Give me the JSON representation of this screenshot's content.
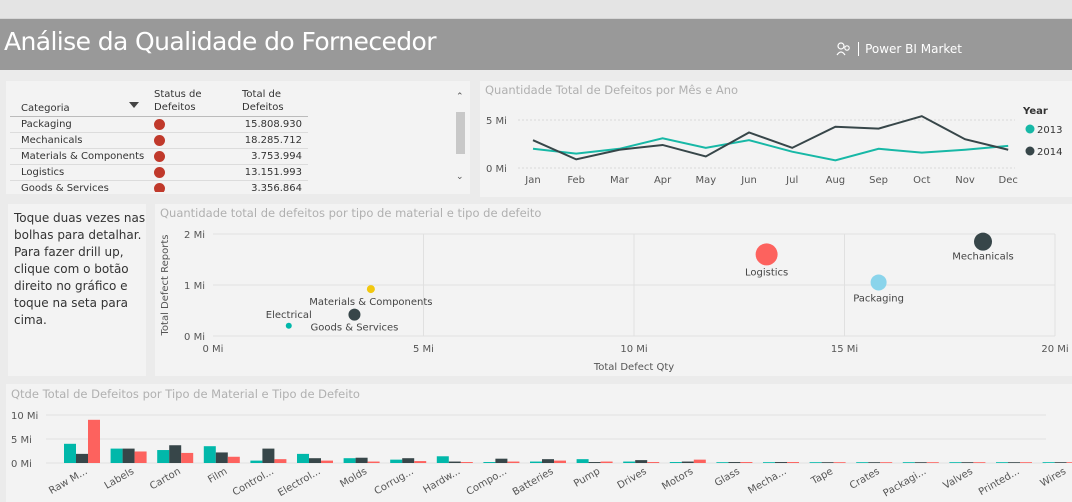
{
  "header": {
    "title": "Análise da Qualidade do Fornecedor",
    "brand": "Power BI Market",
    "brand_icon": "people-icon"
  },
  "table": {
    "headers": {
      "categoria": "Categoria",
      "status_1": "Status de",
      "status_2": "Defeitos",
      "total_1": "Total de",
      "total_2": "Defeitos"
    },
    "rows": [
      {
        "categoria": "Packaging",
        "total": "15.808.930"
      },
      {
        "categoria": "Mechanicals",
        "total": "18.285.712"
      },
      {
        "categoria": "Materials & Components",
        "total": "3.753.994"
      },
      {
        "categoria": "Logistics",
        "total": "13.151.993"
      },
      {
        "categoria": "Goods & Services",
        "total": "3.356.864"
      }
    ],
    "status_color": "#c0392b"
  },
  "line_chart": {
    "title": "Quantidade Total de Defeitos por Mês e Ano",
    "legend_title": "Year",
    "chart_data": {
      "type": "line",
      "x": [
        "Jan",
        "Feb",
        "Mar",
        "Apr",
        "May",
        "Jun",
        "Jul",
        "Aug",
        "Sep",
        "Oct",
        "Nov",
        "Dec"
      ],
      "series": [
        {
          "name": "2013",
          "color": "#17b8a6",
          "values": [
            2.0,
            1.5,
            2.0,
            3.1,
            2.1,
            2.9,
            1.7,
            0.8,
            2.0,
            1.6,
            1.9,
            2.3
          ]
        },
        {
          "name": "2014",
          "color": "#374649",
          "values": [
            2.9,
            0.9,
            1.9,
            2.4,
            1.2,
            3.7,
            2.1,
            4.3,
            4.1,
            5.4,
            3.0,
            1.9
          ]
        }
      ],
      "yticks": [
        "0 Mi",
        "5 Mi"
      ],
      "ylim": [
        0,
        6
      ]
    }
  },
  "note": {
    "text": "Toque duas vezes nas bolhas para detalhar. Para fazer drill up, clique com o botão direito no gráfico e toque na seta para cima."
  },
  "scatter_chart": {
    "title": "Quantidade total de defeitos por tipo de material e tipo de defeito",
    "chart_data": {
      "type": "scatter",
      "xlabel": "Total Defect Qty",
      "ylabel": "Total Defect Reports",
      "xticks": [
        "0 Mi",
        "5 Mi",
        "10 Mi",
        "15 Mi",
        "20 Mi"
      ],
      "yticks": [
        "0 Mi",
        "1 Mi",
        "2 Mi"
      ],
      "xlim": [
        0,
        20
      ],
      "ylim": [
        0,
        2
      ],
      "points": [
        {
          "label": "Logistics",
          "x": 13.15,
          "y": 1.6,
          "size": 11,
          "color": "#fd625e"
        },
        {
          "label": "Mechanicals",
          "x": 18.29,
          "y": 1.85,
          "size": 9,
          "color": "#374649"
        },
        {
          "label": "Packaging",
          "x": 15.81,
          "y": 1.05,
          "size": 8,
          "color": "#8ad4eb"
        },
        {
          "label": "Materials & Components",
          "x": 3.75,
          "y": 0.92,
          "size": 4,
          "color": "#f2c80f"
        },
        {
          "label": "Electrical",
          "x": 1.8,
          "y": 0.2,
          "size": 3,
          "color": "#01b8aa"
        },
        {
          "label": "Goods & Services",
          "x": 3.36,
          "y": 0.42,
          "size": 6,
          "color": "#374649"
        }
      ]
    }
  },
  "bar_chart": {
    "title": "Qtde Total de Defeitos por Tipo de Material e Tipo de Defeito",
    "chart_data": {
      "type": "bar",
      "categories": [
        "Raw M...",
        "Labels",
        "Carton",
        "Film",
        "Control...",
        "Electrol...",
        "Molds",
        "Corrug...",
        "Hardw...",
        "Compo...",
        "Batteries",
        "Pump",
        "Drives",
        "Motors",
        "Glass",
        "Mecha...",
        "Tape",
        "Crates",
        "Packagi...",
        "Valves",
        "Printed...",
        "Wires"
      ],
      "series": [
        {
          "color": "#01b8aa",
          "values": [
            4.0,
            3.0,
            2.7,
            3.5,
            0.5,
            1.9,
            1.0,
            0.7,
            1.4,
            0.2,
            0.3,
            0.8,
            0.3,
            0.2,
            0.1,
            0.1,
            0.1,
            0.1,
            0.1,
            0.05,
            0.1,
            0.05
          ]
        },
        {
          "color": "#374649",
          "values": [
            1.9,
            3.0,
            3.7,
            2.2,
            3.0,
            1.0,
            1.1,
            1.0,
            0.3,
            0.9,
            0.8,
            0.2,
            0.6,
            0.3,
            0.2,
            0.2,
            0.1,
            0.1,
            0.1,
            0.1,
            0.1,
            0.05
          ]
        },
        {
          "color": "#fd625e",
          "values": [
            9.0,
            2.4,
            2.1,
            1.3,
            0.8,
            0.5,
            0.3,
            0.4,
            0.2,
            0.3,
            0.5,
            0.3,
            0.2,
            0.7,
            0.2,
            0.2,
            0.1,
            0.1,
            0.1,
            0.1,
            0.1,
            0.05
          ]
        }
      ],
      "yticks": [
        "0 Mi",
        "5 Mi",
        "10 Mi"
      ],
      "ylim": [
        0,
        10
      ]
    }
  }
}
